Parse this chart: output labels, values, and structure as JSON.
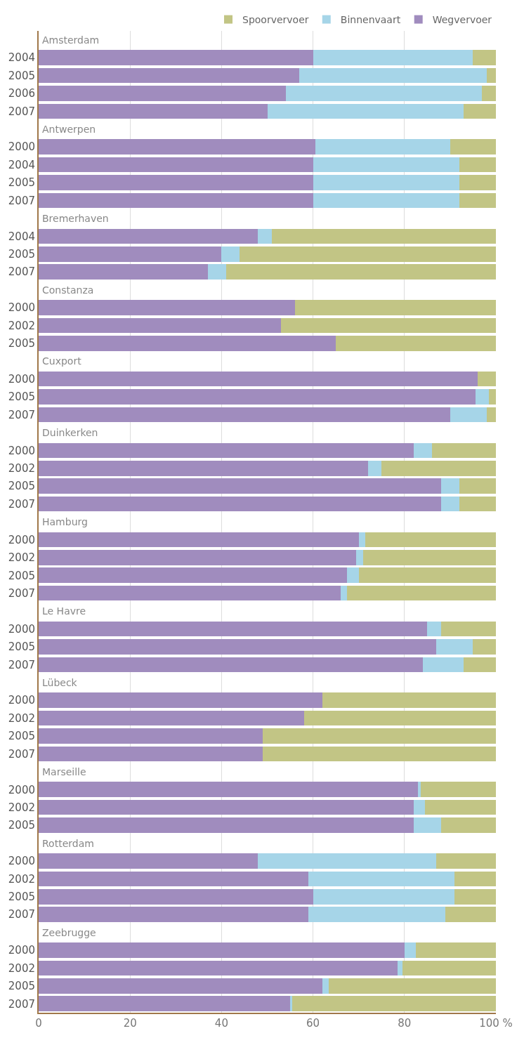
{
  "chart_data": {
    "type": "bar",
    "orientation": "horizontal",
    "stacked": true,
    "categories": [
      "Amsterdam",
      "2004",
      "2005",
      "2006",
      "2007",
      "Antwerpen",
      "2000",
      "2004",
      "2005",
      "2007",
      "Bremerhaven",
      "2004",
      "2005",
      "2007",
      "Constanza",
      "2000",
      "2002",
      "2005",
      "Cuxport",
      "2000",
      "2005",
      "2007",
      "Duinkerken",
      "2000",
      "2002",
      "2005",
      "2007",
      "Hamburg",
      "2000",
      "2002",
      "2005",
      "2007",
      "Le Havre",
      "2000",
      "2005",
      "2007",
      "Lübeck",
      "2000",
      "2002",
      "2005",
      "2007",
      "Marseille",
      "2000",
      "2002",
      "2005",
      "Rotterdam",
      "2000",
      "2002",
      "2005",
      "2007",
      "Zeebrugge",
      "2000",
      "2002",
      "2005",
      "2007"
    ],
    "series": [
      {
        "name": "Wegvervoer",
        "color": "#a08cbe",
        "values": [
          null,
          60,
          57,
          54,
          50,
          null,
          60.5,
          60,
          60,
          60,
          null,
          48,
          40,
          37,
          null,
          56,
          53,
          65,
          null,
          96,
          95.5,
          90,
          null,
          82,
          72,
          88,
          88,
          null,
          70,
          69.5,
          67.5,
          66,
          null,
          85,
          87,
          84,
          null,
          62,
          58,
          49,
          49,
          null,
          83,
          82,
          82,
          null,
          48,
          59,
          60,
          59,
          null,
          80,
          78.5,
          62,
          55
        ]
      },
      {
        "name": "Binnenvaart",
        "color": "#a6d5e8",
        "values": [
          null,
          35,
          41,
          43,
          43,
          null,
          29.5,
          32,
          32,
          32,
          null,
          3,
          4,
          4,
          null,
          0,
          0,
          0,
          null,
          0,
          3,
          8,
          null,
          4,
          3,
          4,
          4,
          null,
          1.5,
          1.5,
          2.5,
          1.5,
          null,
          3,
          8,
          9,
          null,
          0,
          0,
          0,
          0,
          null,
          0.5,
          2.5,
          6,
          null,
          39,
          32,
          31,
          30,
          null,
          2.5,
          1,
          1.5,
          0.5
        ]
      },
      {
        "name": "Spoorvervoer",
        "color": "#c2c585",
        "values": [
          null,
          5,
          2,
          3,
          7,
          null,
          10,
          8,
          8,
          8,
          null,
          49,
          56,
          59,
          null,
          44,
          47,
          35,
          null,
          4,
          1.5,
          2,
          null,
          14,
          25,
          8,
          8,
          null,
          28.5,
          29,
          30,
          32.5,
          null,
          12,
          5,
          7,
          null,
          38,
          42,
          51,
          51,
          null,
          16.5,
          15.5,
          12,
          null,
          13,
          9,
          9,
          11,
          null,
          17.5,
          20.5,
          36.5,
          44.5
        ]
      }
    ],
    "xlim": [
      0,
      100
    ],
    "xticks": [
      0,
      20,
      40,
      60,
      80,
      {
        "value": 100,
        "label": "100 %"
      }
    ],
    "grid": "x",
    "legend": "top right"
  }
}
